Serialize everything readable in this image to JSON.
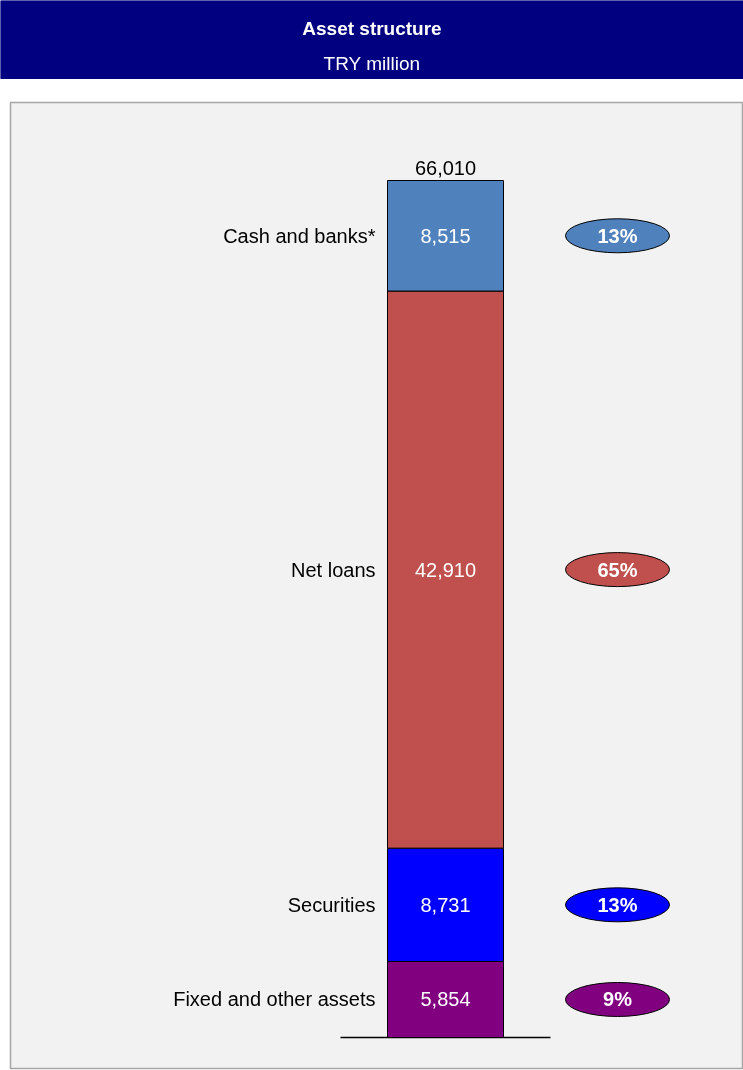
{
  "chart_data": {
    "type": "bar",
    "title": "Asset structure",
    "subtitle": "TRY million",
    "stacked": true,
    "categories": [
      null
    ],
    "series": [
      {
        "name": "Fixed and other assets",
        "color": "#800080",
        "values": [
          5854
        ],
        "value_labels": [
          "5,854"
        ]
      },
      {
        "name": "Securities",
        "color": "#0000ff",
        "values": [
          8731
        ],
        "value_labels": [
          "8,731"
        ]
      },
      {
        "name": "Net loans",
        "color": "#c0504d",
        "values": [
          42910
        ],
        "value_labels": [
          "42,910"
        ]
      },
      {
        "name": "Cash and banks*",
        "color": "#4f81bd",
        "values": [
          8515
        ],
        "value_labels": [
          "8,515"
        ]
      }
    ],
    "totals": [
      "66,010"
    ],
    "annotations": [
      "9%",
      "13%",
      "65%",
      "13%"
    ]
  }
}
